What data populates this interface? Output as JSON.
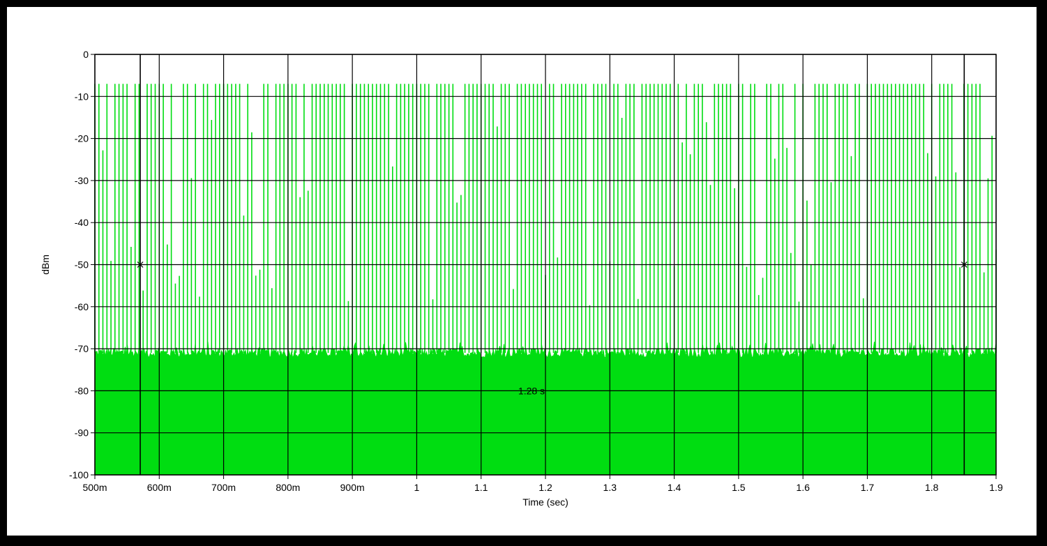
{
  "chart_data": {
    "type": "line",
    "title": "",
    "xlabel": "Time (sec)",
    "ylabel": "dBm",
    "xlim": [
      0.5,
      1.9
    ],
    "ylim": [
      -100,
      0
    ],
    "x_ticks": [
      0.5,
      0.6,
      0.7,
      0.8,
      0.9,
      1.0,
      1.1,
      1.2,
      1.3,
      1.4,
      1.5,
      1.6,
      1.7,
      1.8,
      1.9
    ],
    "x_tick_labels": [
      "500m",
      "600m",
      "700m",
      "800m",
      "900m",
      "1",
      "1.1",
      "1.2",
      "1.3",
      "1.4",
      "1.5",
      "1.6",
      "1.7",
      "1.8",
      "1.9"
    ],
    "y_ticks": [
      0,
      -10,
      -20,
      -30,
      -40,
      -50,
      -60,
      -70,
      -80,
      -90,
      -100
    ],
    "y_tick_labels": [
      "0",
      "-10",
      "-20",
      "-30",
      "-40",
      "-50",
      "-60",
      "-70",
      "-80",
      "-90",
      "-100"
    ],
    "grid": true,
    "series": [
      {
        "color": "#00dd11",
        "noise_floor_dbm": -71,
        "pulse_peak_dbm": -7,
        "pulse_start_s": 0.5,
        "pulse_interval_s": 0.00625,
        "fill_to_dbm": -100
      }
    ],
    "cursors": [
      {
        "x": 0.5705,
        "y": -50
      },
      {
        "x": 1.8505,
        "y": -50
      }
    ],
    "annotations": [
      {
        "text": "1.28 s",
        "x": 1.2,
        "y": -80
      }
    ]
  }
}
